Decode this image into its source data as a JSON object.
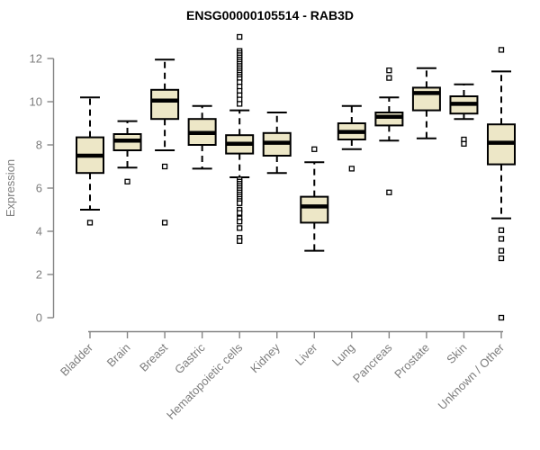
{
  "chart_data": {
    "type": "boxplot",
    "title": "ENSG00000105514 - RAB3D",
    "ylabel": "Expression",
    "xlabel": "",
    "ylim": [
      0,
      13.4
    ],
    "yticks": [
      0,
      2,
      4,
      6,
      8,
      10,
      12
    ],
    "grid": false,
    "legend": "none",
    "colors": {
      "box_fill": "#EDE7C7",
      "box_stroke": "#000000",
      "median": "#000000",
      "whisker": "#000000",
      "outlier_stroke": "#000000",
      "axis": "#858585",
      "tick_label": "#7d7d7d",
      "title": "#000000",
      "background": "#ffffff"
    },
    "categories": [
      "Bladder",
      "Brain",
      "Breast",
      "Gastric",
      "Hematopoietic cells",
      "Kidney",
      "Liver",
      "Lung",
      "Pancreas",
      "Prostate",
      "Skin",
      "Unknown / Other"
    ],
    "series": [
      {
        "name": "Bladder",
        "whisker_low": 5.0,
        "q1": 6.7,
        "median": 7.5,
        "q3": 8.35,
        "whisker_high": 10.2,
        "outliers": [
          4.4
        ]
      },
      {
        "name": "Brain",
        "whisker_low": 6.95,
        "q1": 7.75,
        "median": 8.2,
        "q3": 8.5,
        "whisker_high": 9.1,
        "outliers": [
          6.3
        ]
      },
      {
        "name": "Breast",
        "whisker_low": 7.75,
        "q1": 9.2,
        "median": 10.05,
        "q3": 10.55,
        "whisker_high": 11.95,
        "outliers": [
          7.0,
          4.4
        ]
      },
      {
        "name": "Gastric",
        "whisker_low": 6.9,
        "q1": 8.0,
        "median": 8.55,
        "q3": 9.2,
        "whisker_high": 9.8,
        "outliers": []
      },
      {
        "name": "Hematopoietic cells",
        "whisker_low": 6.5,
        "q1": 7.6,
        "median": 8.05,
        "q3": 8.45,
        "whisker_high": 9.6,
        "outliers": [
          13.0,
          12.35,
          12.25,
          12.15,
          12.05,
          11.95,
          11.85,
          11.75,
          11.65,
          11.55,
          11.45,
          11.35,
          11.25,
          11.15,
          11.05,
          10.9,
          10.7,
          10.5,
          10.3,
          10.1,
          9.9,
          6.4,
          6.3,
          6.2,
          6.1,
          6.0,
          5.9,
          5.8,
          5.7,
          5.6,
          5.5,
          5.4,
          5.3,
          5.0,
          4.85,
          4.6,
          4.45,
          4.15,
          3.7,
          3.55
        ]
      },
      {
        "name": "Kidney",
        "whisker_low": 6.7,
        "q1": 7.5,
        "median": 8.1,
        "q3": 8.55,
        "whisker_high": 9.5,
        "outliers": []
      },
      {
        "name": "Liver",
        "whisker_low": 3.1,
        "q1": 4.4,
        "median": 5.15,
        "q3": 5.6,
        "whisker_high": 7.2,
        "outliers": [
          7.8
        ]
      },
      {
        "name": "Lung",
        "whisker_low": 7.8,
        "q1": 8.25,
        "median": 8.6,
        "q3": 9.0,
        "whisker_high": 9.8,
        "outliers": [
          6.9
        ]
      },
      {
        "name": "Pancreas",
        "whisker_low": 8.2,
        "q1": 8.9,
        "median": 9.3,
        "q3": 9.5,
        "whisker_high": 10.2,
        "outliers": [
          11.45,
          11.1,
          5.8
        ]
      },
      {
        "name": "Prostate",
        "whisker_low": 8.3,
        "q1": 9.6,
        "median": 10.4,
        "q3": 10.65,
        "whisker_high": 11.55,
        "outliers": []
      },
      {
        "name": "Skin",
        "whisker_low": 9.2,
        "q1": 9.45,
        "median": 9.9,
        "q3": 10.25,
        "whisker_high": 10.8,
        "outliers": [
          8.25,
          8.05
        ]
      },
      {
        "name": "Unknown / Other",
        "whisker_low": 4.6,
        "q1": 7.1,
        "median": 8.1,
        "q3": 8.95,
        "whisker_high": 11.4,
        "outliers": [
          12.4,
          4.05,
          3.65,
          3.1,
          2.75,
          0.0
        ]
      }
    ]
  }
}
